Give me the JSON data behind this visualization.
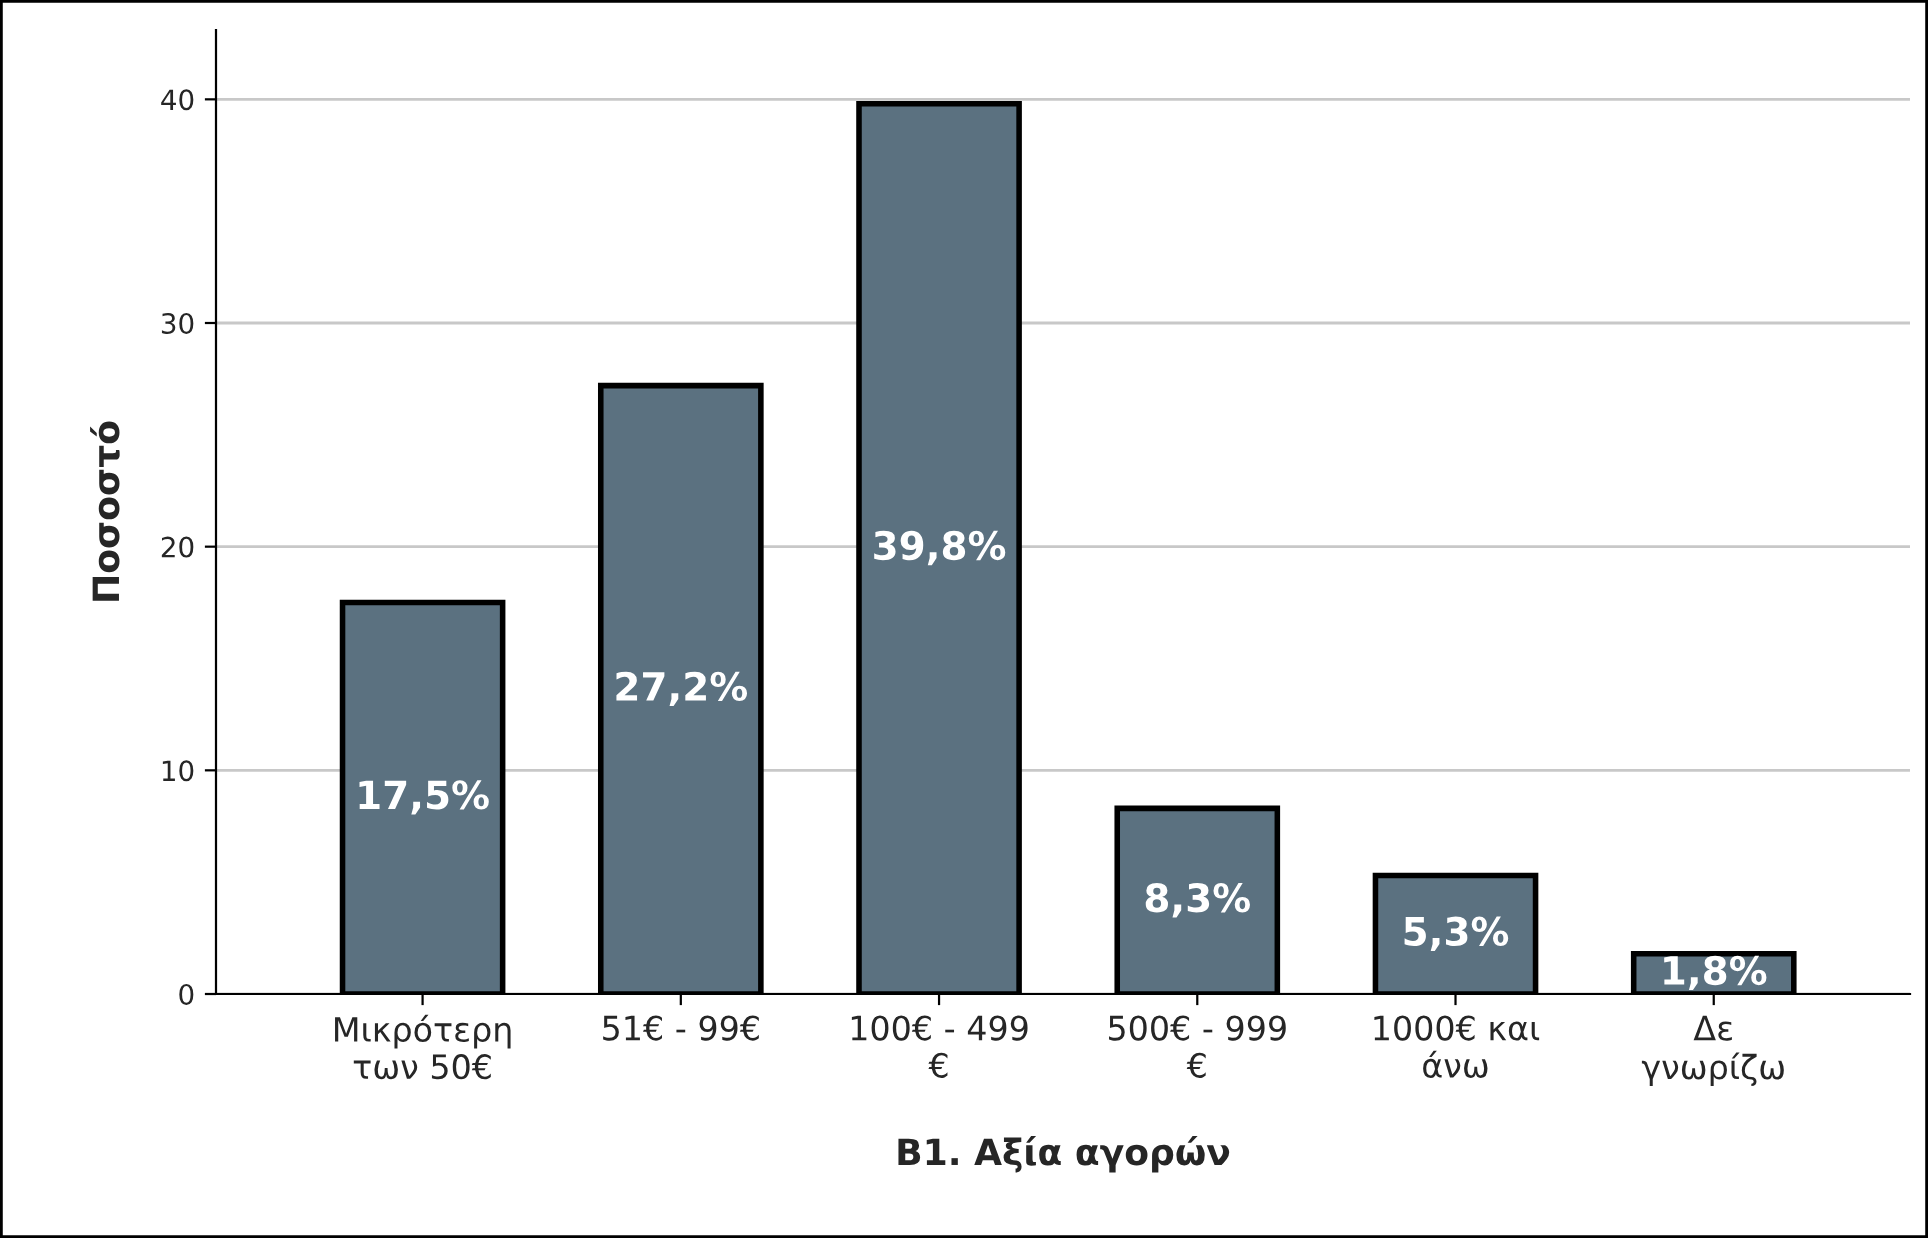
{
  "chart_data": {
    "type": "bar",
    "xlabel": "Β1. Αξία αγορών",
    "ylabel": "Ποσοστό",
    "categories": [
      "Μικρότερη\nτων 50€",
      "51€ - 99€",
      "100€ - 499\n€",
      "500€ - 999\n€",
      "1000€ και\nάνω",
      "Δε\nγνωρίζω"
    ],
    "values": [
      17.5,
      27.2,
      39.8,
      8.3,
      5.3,
      1.8
    ],
    "value_labels": [
      "17,5%",
      "27,2%",
      "39,8%",
      "8,3%",
      "5,3%",
      "1,8%"
    ],
    "color": "#5b7180",
    "ylim": [
      0,
      43.1
    ],
    "yticks": [
      0,
      10,
      20,
      30,
      40
    ],
    "grid": "y",
    "legend": false
  }
}
